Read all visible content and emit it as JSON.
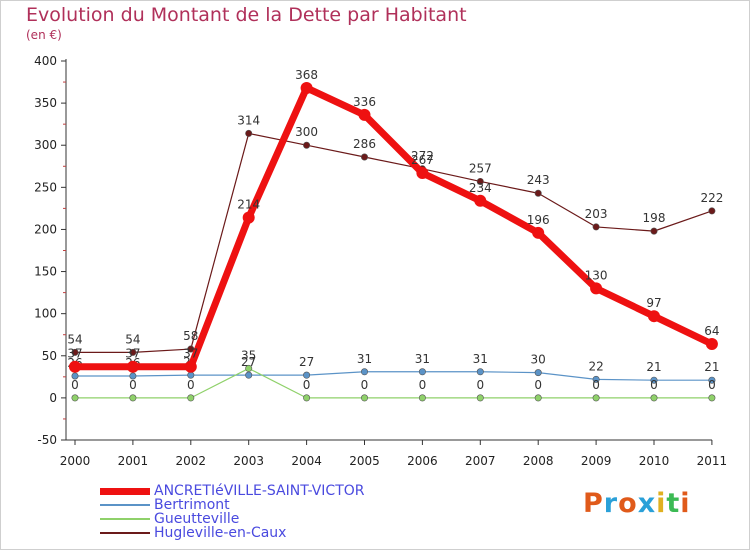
{
  "title": "Evolution du Montant de la Dette par Habitant",
  "unit": "(en €)",
  "logo": {
    "letters": [
      "P",
      "r",
      "o",
      "x",
      "i",
      "t",
      "i"
    ],
    "colors": [
      "#e05a1a",
      "#2aa0d8",
      "#e05a1a",
      "#2aa0d8",
      "#e0b020",
      "#3cba54",
      "#e05a1a"
    ]
  },
  "chart_data": {
    "type": "line",
    "title": "Evolution du Montant de la Dette par Habitant",
    "ylabel": "(en €)",
    "ylim": [
      -50,
      400
    ],
    "yticks": [
      -50,
      0,
      50,
      100,
      150,
      200,
      250,
      300,
      350,
      400
    ],
    "x": [
      "2000",
      "2001",
      "2002",
      "2003",
      "2004",
      "2005",
      "2006",
      "2007",
      "2008",
      "2009",
      "2010",
      "2011"
    ],
    "series": [
      {
        "name": "Bertrimont",
        "color": "#5b93c7",
        "values": [
          26,
          26,
          27,
          27,
          27,
          31,
          31,
          31,
          30,
          22,
          21,
          21
        ]
      },
      {
        "name": "Gueutteville",
        "color": "#8fd16a",
        "values": [
          0,
          0,
          0,
          35,
          0,
          0,
          0,
          0,
          0,
          0,
          0,
          0
        ]
      },
      {
        "name": "Hugleville-en-Caux",
        "color": "#6b1a1a",
        "values": [
          54,
          54,
          58,
          314,
          300,
          286,
          272,
          257,
          243,
          203,
          198,
          222
        ]
      },
      {
        "name": "ANCRETIéVILLE-SAINT-VICTOR",
        "color": "#ee1111",
        "values": [
          37,
          37,
          37,
          214,
          368,
          336,
          267,
          234,
          196,
          130,
          97,
          64
        ]
      }
    ],
    "legend": [
      "ANCRETIéVILLE-SAINT-VICTOR",
      "Bertrimont",
      "Gueutteville",
      "Hugleville-en-Caux"
    ]
  }
}
